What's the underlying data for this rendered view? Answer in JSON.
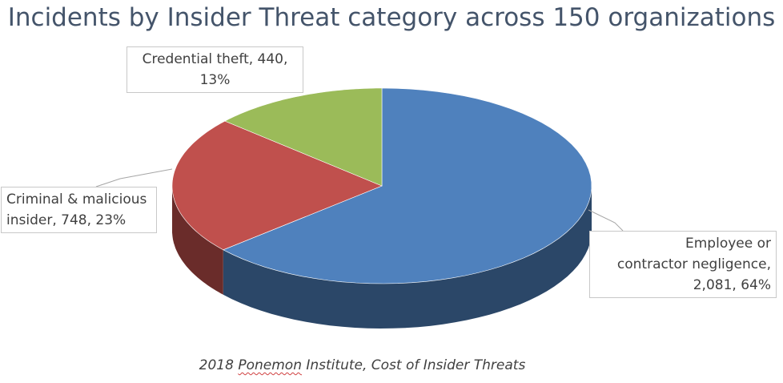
{
  "chart_data": {
    "type": "pie",
    "title": "Incidents by Insider Threat category across 150 organizations",
    "categories": [
      "Employee or contractor negligence",
      "Criminal & malicious insider",
      "Credential theft"
    ],
    "values": [
      2081,
      748,
      440
    ],
    "percentages": [
      64,
      23,
      13
    ],
    "colors": [
      "#4F81BD",
      "#C0504D",
      "#9BBB59"
    ],
    "data_labels": [
      [
        "Employee or",
        "contractor negligence,",
        "2,081, 64%"
      ],
      [
        "Criminal & malicious",
        "insider, 748, 23%"
      ],
      [
        "Credential theft, 440,",
        "13%"
      ]
    ],
    "style": "3D pie"
  },
  "caption": {
    "prefix": "2018 ",
    "underlined": "Ponemon",
    "suffix": " Institute, Cost of Insider Threats"
  }
}
